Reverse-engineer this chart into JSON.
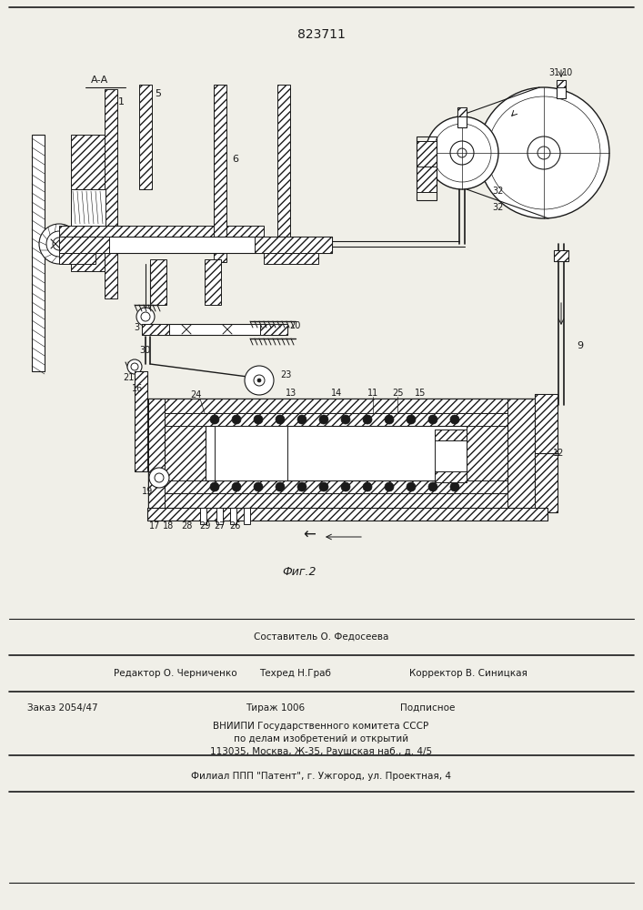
{
  "patent_number": "823711",
  "fig_label": "Фиг.2",
  "section_label": "А-А",
  "background_color": "#f0efe8",
  "line_color": "#1a1a1a",
  "footer": {
    "line1_center": "Составитель О. Федосеева",
    "line2_left": "Редактор О. Черниченко",
    "line2_mid": "Техред Н.Граб",
    "line2_right": "Корректор В. Синицкая",
    "line3_left": "Заказ 2054/47",
    "line3_mid": "Тираж 1006",
    "line3_right": "Подписное",
    "line4": "ВНИИПИ Государственного комитета СССР",
    "line5": "по делам изобретений и открытий",
    "line6": "113035, Москва, Ж-35, Раушская наб., д. 4/5",
    "line7": "Филиал ППП \"Патент\", г. Ужгород, ул. Проектная, 4"
  }
}
